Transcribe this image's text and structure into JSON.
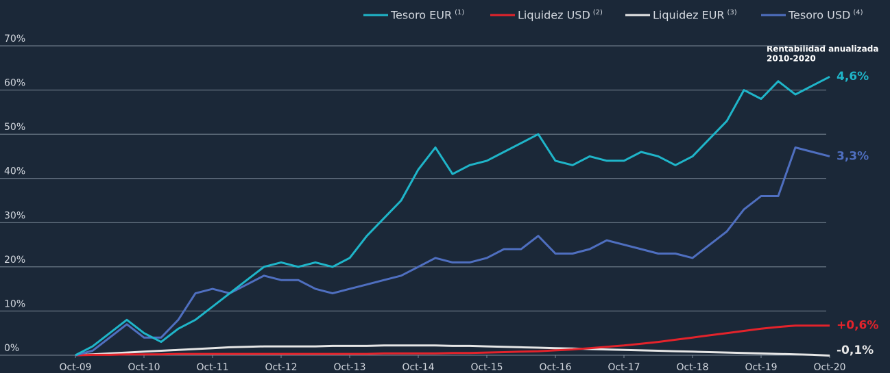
{
  "chart_data": {
    "type": "line",
    "annotation": [
      "Rentabilidad anualizada",
      "2010-2020"
    ],
    "x": [
      "2009-10",
      "2010-01",
      "2010-04",
      "2010-07",
      "2010-10",
      "2011-01",
      "2011-04",
      "2011-07",
      "2011-10",
      "2012-01",
      "2012-04",
      "2012-07",
      "2012-10",
      "2013-01",
      "2013-04",
      "2013-07",
      "2013-10",
      "2014-01",
      "2014-04",
      "2014-07",
      "2014-10",
      "2015-01",
      "2015-04",
      "2015-07",
      "2015-10",
      "2016-01",
      "2016-04",
      "2016-07",
      "2016-10",
      "2017-01",
      "2017-04",
      "2017-07",
      "2017-10",
      "2018-01",
      "2018-04",
      "2018-07",
      "2018-10",
      "2019-01",
      "2019-04",
      "2019-07",
      "2019-10",
      "2020-01",
      "2020-04",
      "2020-07",
      "2020-10"
    ],
    "xlim": [
      "2009-10",
      "2020-10"
    ],
    "xticks": [
      {
        "value": "2009-10",
        "label": "Oct-09"
      },
      {
        "value": "2010-10",
        "label": "Oct-10"
      },
      {
        "value": "2011-10",
        "label": "Oct-11"
      },
      {
        "value": "2012-10",
        "label": "Oct-12"
      },
      {
        "value": "2013-10",
        "label": "Oct-13"
      },
      {
        "value": "2014-10",
        "label": "Oct-14"
      },
      {
        "value": "2015-10",
        "label": "Oct-15"
      },
      {
        "value": "2016-10",
        "label": "Oct-16"
      },
      {
        "value": "2017-10",
        "label": "Oct-17"
      },
      {
        "value": "2018-10",
        "label": "Oct-18"
      },
      {
        "value": "2019-10",
        "label": "Oct-19"
      },
      {
        "value": "2020-10",
        "label": "Oct-20"
      }
    ],
    "ylim": [
      0,
      70
    ],
    "yticks": [
      {
        "value": 0,
        "label": "0%"
      },
      {
        "value": 10,
        "label": "10%"
      },
      {
        "value": 20,
        "label": "20%"
      },
      {
        "value": 30,
        "label": "30%"
      },
      {
        "value": 40,
        "label": "40%"
      },
      {
        "value": 50,
        "label": "50%"
      },
      {
        "value": 60,
        "label": "60%"
      },
      {
        "value": 70,
        "label": "70%"
      }
    ],
    "grid": true,
    "legend": "top-right",
    "series": [
      {
        "name": "Tesoro EUR",
        "note": "(1)",
        "color": "#1fb5c9",
        "end_label": "4,6%",
        "values": [
          0,
          2,
          5,
          8,
          5,
          3,
          6,
          8,
          11,
          14,
          17,
          20,
          21,
          20,
          21,
          20,
          22,
          27,
          31,
          35,
          42,
          47,
          41,
          43,
          44,
          46,
          48,
          50,
          44,
          43,
          45,
          44,
          44,
          46,
          45,
          43,
          45,
          49,
          53,
          60,
          58,
          62,
          59,
          61,
          63
        ]
      },
      {
        "name": "Liquidez USD",
        "note": "(2)",
        "color": "#e3232b",
        "end_label": "+0,6%",
        "values": [
          0,
          0.1,
          0.1,
          0.2,
          0.2,
          0.2,
          0.3,
          0.3,
          0.3,
          0.3,
          0.3,
          0.3,
          0.3,
          0.3,
          0.3,
          0.3,
          0.3,
          0.3,
          0.4,
          0.4,
          0.4,
          0.4,
          0.5,
          0.5,
          0.6,
          0.7,
          0.8,
          0.9,
          1.1,
          1.3,
          1.6,
          1.9,
          2.2,
          2.6,
          3.0,
          3.5,
          4.0,
          4.5,
          5.0,
          5.5,
          6.0,
          6.4,
          6.7,
          6.7,
          6.7
        ]
      },
      {
        "name": "Liquidez EUR",
        "note": "(3)",
        "color": "#e6e6e6",
        "end_label": "-0,1%",
        "values": [
          0,
          0.2,
          0.4,
          0.6,
          0.8,
          1.0,
          1.2,
          1.4,
          1.6,
          1.8,
          1.9,
          2.0,
          2.0,
          2.0,
          2.0,
          2.1,
          2.1,
          2.1,
          2.2,
          2.2,
          2.2,
          2.2,
          2.1,
          2.1,
          2.0,
          1.9,
          1.8,
          1.7,
          1.6,
          1.5,
          1.4,
          1.3,
          1.2,
          1.1,
          1.0,
          0.9,
          0.8,
          0.7,
          0.6,
          0.5,
          0.4,
          0.3,
          0.2,
          0.1,
          -0.1
        ]
      },
      {
        "name": "Tesoro USD",
        "note": "(4)",
        "color": "#4f6fc0",
        "end_label": "3,3%",
        "values": [
          0,
          1,
          4,
          7,
          4,
          4,
          8,
          14,
          15,
          14,
          16,
          18,
          17,
          17,
          15,
          14,
          15,
          16,
          17,
          18,
          20,
          22,
          21,
          21,
          22,
          24,
          24,
          27,
          23,
          23,
          24,
          26,
          25,
          24,
          23,
          23,
          22,
          25,
          28,
          33,
          36,
          36,
          47,
          46,
          45
        ]
      }
    ]
  }
}
